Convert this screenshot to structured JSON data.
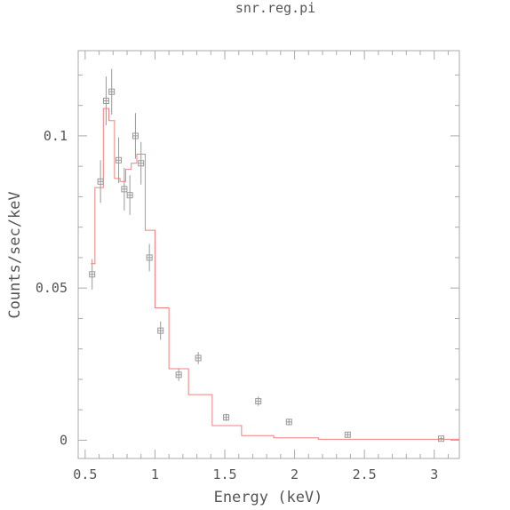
{
  "chart_data": {
    "type": "scatter",
    "title": "snr.reg.pi",
    "xlabel": "Energy (keV)",
    "ylabel": "Counts/sec/keV",
    "xlim": [
      0.45,
      3.18
    ],
    "ylim": [
      -0.006,
      0.128
    ],
    "xticks": [
      0.5,
      1,
      1.5,
      2,
      2.5,
      3
    ],
    "xtick_labels": [
      "0.5",
      "1",
      "1.5",
      "2",
      "2.5",
      "3"
    ],
    "yticks": [
      0,
      0.05,
      0.1
    ],
    "ytick_labels": [
      "0",
      "0.05",
      "0.1"
    ],
    "grid": false,
    "colors": {
      "data": "#999999",
      "model": "#f08080",
      "axes": "#aaaaaa",
      "text": "#555555"
    },
    "series": [
      {
        "kind": "data-with-errorbars",
        "points": [
          {
            "x": 0.55,
            "y": 0.0545,
            "xerr": 0.02,
            "yerr": 0.005
          },
          {
            "x": 0.61,
            "y": 0.085,
            "xerr": 0.02,
            "yerr": 0.007
          },
          {
            "x": 0.65,
            "y": 0.1115,
            "xerr": 0.02,
            "yerr": 0.008
          },
          {
            "x": 0.69,
            "y": 0.1145,
            "xerr": 0.02,
            "yerr": 0.0075
          },
          {
            "x": 0.74,
            "y": 0.092,
            "xerr": 0.02,
            "yerr": 0.0075
          },
          {
            "x": 0.78,
            "y": 0.0825,
            "xerr": 0.02,
            "yerr": 0.007
          },
          {
            "x": 0.82,
            "y": 0.0805,
            "xerr": 0.02,
            "yerr": 0.0065
          },
          {
            "x": 0.86,
            "y": 0.1,
            "xerr": 0.02,
            "yerr": 0.0075
          },
          {
            "x": 0.9,
            "y": 0.091,
            "xerr": 0.02,
            "yerr": 0.007
          },
          {
            "x": 0.96,
            "y": 0.06,
            "xerr": 0.02,
            "yerr": 0.0045
          },
          {
            "x": 1.04,
            "y": 0.036,
            "xerr": 0.02,
            "yerr": 0.003
          },
          {
            "x": 1.17,
            "y": 0.0215,
            "xerr": 0.02,
            "yerr": 0.002
          },
          {
            "x": 1.31,
            "y": 0.027,
            "xerr": 0.02,
            "yerr": 0.002
          },
          {
            "x": 1.51,
            "y": 0.0075,
            "xerr": 0.02,
            "yerr": 0.0012
          },
          {
            "x": 1.74,
            "y": 0.0128,
            "xerr": 0.02,
            "yerr": 0.0015
          },
          {
            "x": 1.96,
            "y": 0.006,
            "xerr": 0.02,
            "yerr": 0.001
          },
          {
            "x": 2.38,
            "y": 0.0018,
            "xerr": 0.02,
            "yerr": 0.0008
          },
          {
            "x": 3.05,
            "y": 0.0005,
            "xerr": 0.02,
            "yerr": 0.0006
          }
        ]
      },
      {
        "kind": "model-step",
        "steps": [
          {
            "x0": 0.54,
            "x1": 0.57,
            "y": 0.058
          },
          {
            "x0": 0.57,
            "x1": 0.63,
            "y": 0.083
          },
          {
            "x0": 0.63,
            "x1": 0.67,
            "y": 0.109
          },
          {
            "x0": 0.67,
            "x1": 0.71,
            "y": 0.105
          },
          {
            "x0": 0.71,
            "x1": 0.75,
            "y": 0.086
          },
          {
            "x0": 0.75,
            "x1": 0.79,
            "y": 0.085
          },
          {
            "x0": 0.79,
            "x1": 0.83,
            "y": 0.089
          },
          {
            "x0": 0.83,
            "x1": 0.87,
            "y": 0.091
          },
          {
            "x0": 0.87,
            "x1": 0.93,
            "y": 0.094
          },
          {
            "x0": 0.93,
            "x1": 1.0,
            "y": 0.069
          },
          {
            "x0": 1.0,
            "x1": 1.1,
            "y": 0.0435
          },
          {
            "x0": 1.1,
            "x1": 1.24,
            "y": 0.0235
          },
          {
            "x0": 1.24,
            "x1": 1.41,
            "y": 0.015
          },
          {
            "x0": 1.41,
            "x1": 1.62,
            "y": 0.0048
          },
          {
            "x0": 1.62,
            "x1": 1.85,
            "y": 0.0015
          },
          {
            "x0": 1.85,
            "x1": 2.17,
            "y": 0.0008
          },
          {
            "x0": 2.17,
            "x1": 3.18,
            "y": 0.0003
          }
        ]
      }
    ]
  }
}
